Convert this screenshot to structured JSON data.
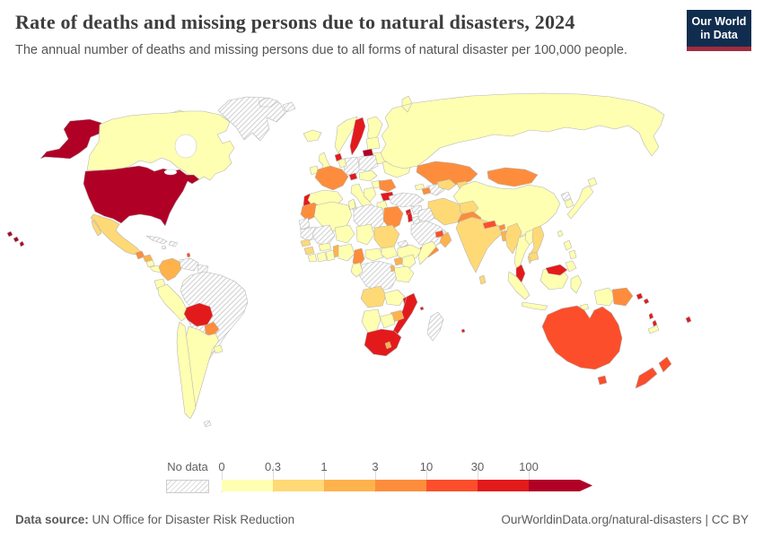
{
  "header": {
    "title": "Rate of deaths and missing persons due to natural disasters, 2024",
    "subtitle": "The annual number of deaths and missing persons due to all forms of natural disaster per 100,000 people.",
    "logo": {
      "line1": "Our World",
      "line2": "in Data"
    }
  },
  "legend": {
    "no_data_label": "No data",
    "ticks": [
      "0",
      "0.3",
      "1",
      "3",
      "10",
      "30",
      "100"
    ]
  },
  "footer": {
    "datasource_label": "Data source:",
    "datasource": " UN Office for Disaster Risk Reduction",
    "link": "OurWorldinData.org/natural-disasters | CC BY"
  },
  "colors": {
    "logo_navy": "#102d4f",
    "logo_red": "#a12c3f",
    "ocean": "#ffffff",
    "border": "#b3b3b3"
  },
  "chart_data": {
    "type": "choropleth",
    "title": "Rate of deaths and missing persons due to natural disasters",
    "year": "2024",
    "unit": "deaths and missing persons per 100,000 people",
    "scale": "log-binned",
    "bins": [
      {
        "label": "0-0.3",
        "color": "#ffffb2"
      },
      {
        "label": "0.3-1",
        "color": "#fed976"
      },
      {
        "label": "1-3",
        "color": "#feb24c"
      },
      {
        "label": "3-10",
        "color": "#fd8d3c"
      },
      {
        "label": "10-30",
        "color": "#fc4e2a"
      },
      {
        "label": "30-100",
        "color": "#e31a1c"
      },
      {
        "label": "100+",
        "color": "#b10026"
      }
    ],
    "no_data": {
      "label": "No data",
      "pattern": "diagonal-hatch"
    },
    "regions": {
      "united-states": 6,
      "canada": 0,
      "greenland": "nodata",
      "svalbard": "nodata",
      "mexico": 1,
      "guatemala": 3,
      "honduras": 2,
      "nicaragua": 0,
      "costa-rica-panama": 0,
      "cuba": "nodata",
      "hispaniola": "nodata",
      "jamaica": "nodata",
      "lesser-antilles": 4,
      "colombia": 2,
      "venezuela": "nodata",
      "guyanas": "nodata",
      "ecuador": 0,
      "peru": 0,
      "brazil": "nodata",
      "bolivia": 5,
      "paraguay": 3,
      "argentina": 0,
      "chile": 0,
      "uruguay": 0,
      "falkland-islands": "nodata",
      "iceland": 0,
      "ireland": 0,
      "united-kingdom": 0,
      "norway": 0,
      "sweden": 5,
      "finland": 0,
      "denmark": 5,
      "estonia-latvia": 0,
      "lithuania": 6,
      "belarus": 0,
      "germany": "nodata",
      "poland": "nodata",
      "benelux": 0,
      "france": 3,
      "switzerland": 5,
      "portugal": 5,
      "spain": 0,
      "italy": 0,
      "austria-czechia": 0,
      "hungary": 0,
      "balkans": 0,
      "romania": 3,
      "bulgaria": 5,
      "greece": 0,
      "ukraine": 0,
      "russia": 0,
      "kazakhstan": 3,
      "turkmenistan": "nodata",
      "uzbekistan": 1,
      "kyrgyzstan-tajikistan": 1,
      "mongolia": 3,
      "china": 0,
      "north-korea": "nodata",
      "south-korea": 0,
      "japan": 0,
      "taiwan": 0,
      "turkey": "nodata",
      "cyprus": 5,
      "syria": "nodata",
      "lebanon-israel": 5,
      "jordan": "nodata",
      "iraq": "nodata",
      "saudi-arabia": "nodata",
      "yemen": 3,
      "oman": 2,
      "uae": 4,
      "iran": 1,
      "afghanistan": 1,
      "pakistan": 3,
      "azerbaijan": 3,
      "georgia": 0,
      "morocco": 3,
      "western-sahara": "nodata",
      "algeria": 0,
      "tunisia": 0,
      "libya": "nodata",
      "egypt": 3,
      "mauritania": "nodata",
      "mali": "nodata",
      "niger": 0,
      "chad": 0,
      "sudan": 1,
      "eritrea": "nodata",
      "ethiopia": 0,
      "somalia": 0,
      "senegal": 1,
      "guinea": 1,
      "sierra-leone-liberia": 0,
      "ivory-coast": 0,
      "ghana": 0,
      "burkina-faso": 0,
      "togo-benin": 2,
      "nigeria": 0,
      "cameroon": 3,
      "central-african-republic": 0,
      "south-sudan": 0,
      "drc": "nodata",
      "gabon-congo": 0,
      "uganda": 2,
      "kenya": 0,
      "tanzania": 0,
      "rwanda-burundi": 2,
      "angola": 1,
      "zambia": 0,
      "malawi": 5,
      "mozambique": 5,
      "zimbabwe": 2,
      "botswana": 0,
      "namibia": 0,
      "south-africa": 5,
      "lesotho": 2,
      "madagascar": "nodata",
      "comoros": 5,
      "mauritius": 5,
      "india": 1,
      "nepal": 4,
      "bhutan": 3,
      "bangladesh": 2,
      "sri-lanka": 1,
      "myanmar": 1,
      "thailand": 0,
      "laos": 0,
      "vietnam": 1,
      "cambodia": 1,
      "malaysia": 5,
      "indonesia": 0,
      "philippines": 0,
      "timor": 0,
      "papua-new-guinea": 3,
      "australia": 4,
      "new-zealand": 4,
      "solomon-islands": 5,
      "vanuatu": 5,
      "fiji": 5,
      "new-caledonia": 0
    }
  }
}
